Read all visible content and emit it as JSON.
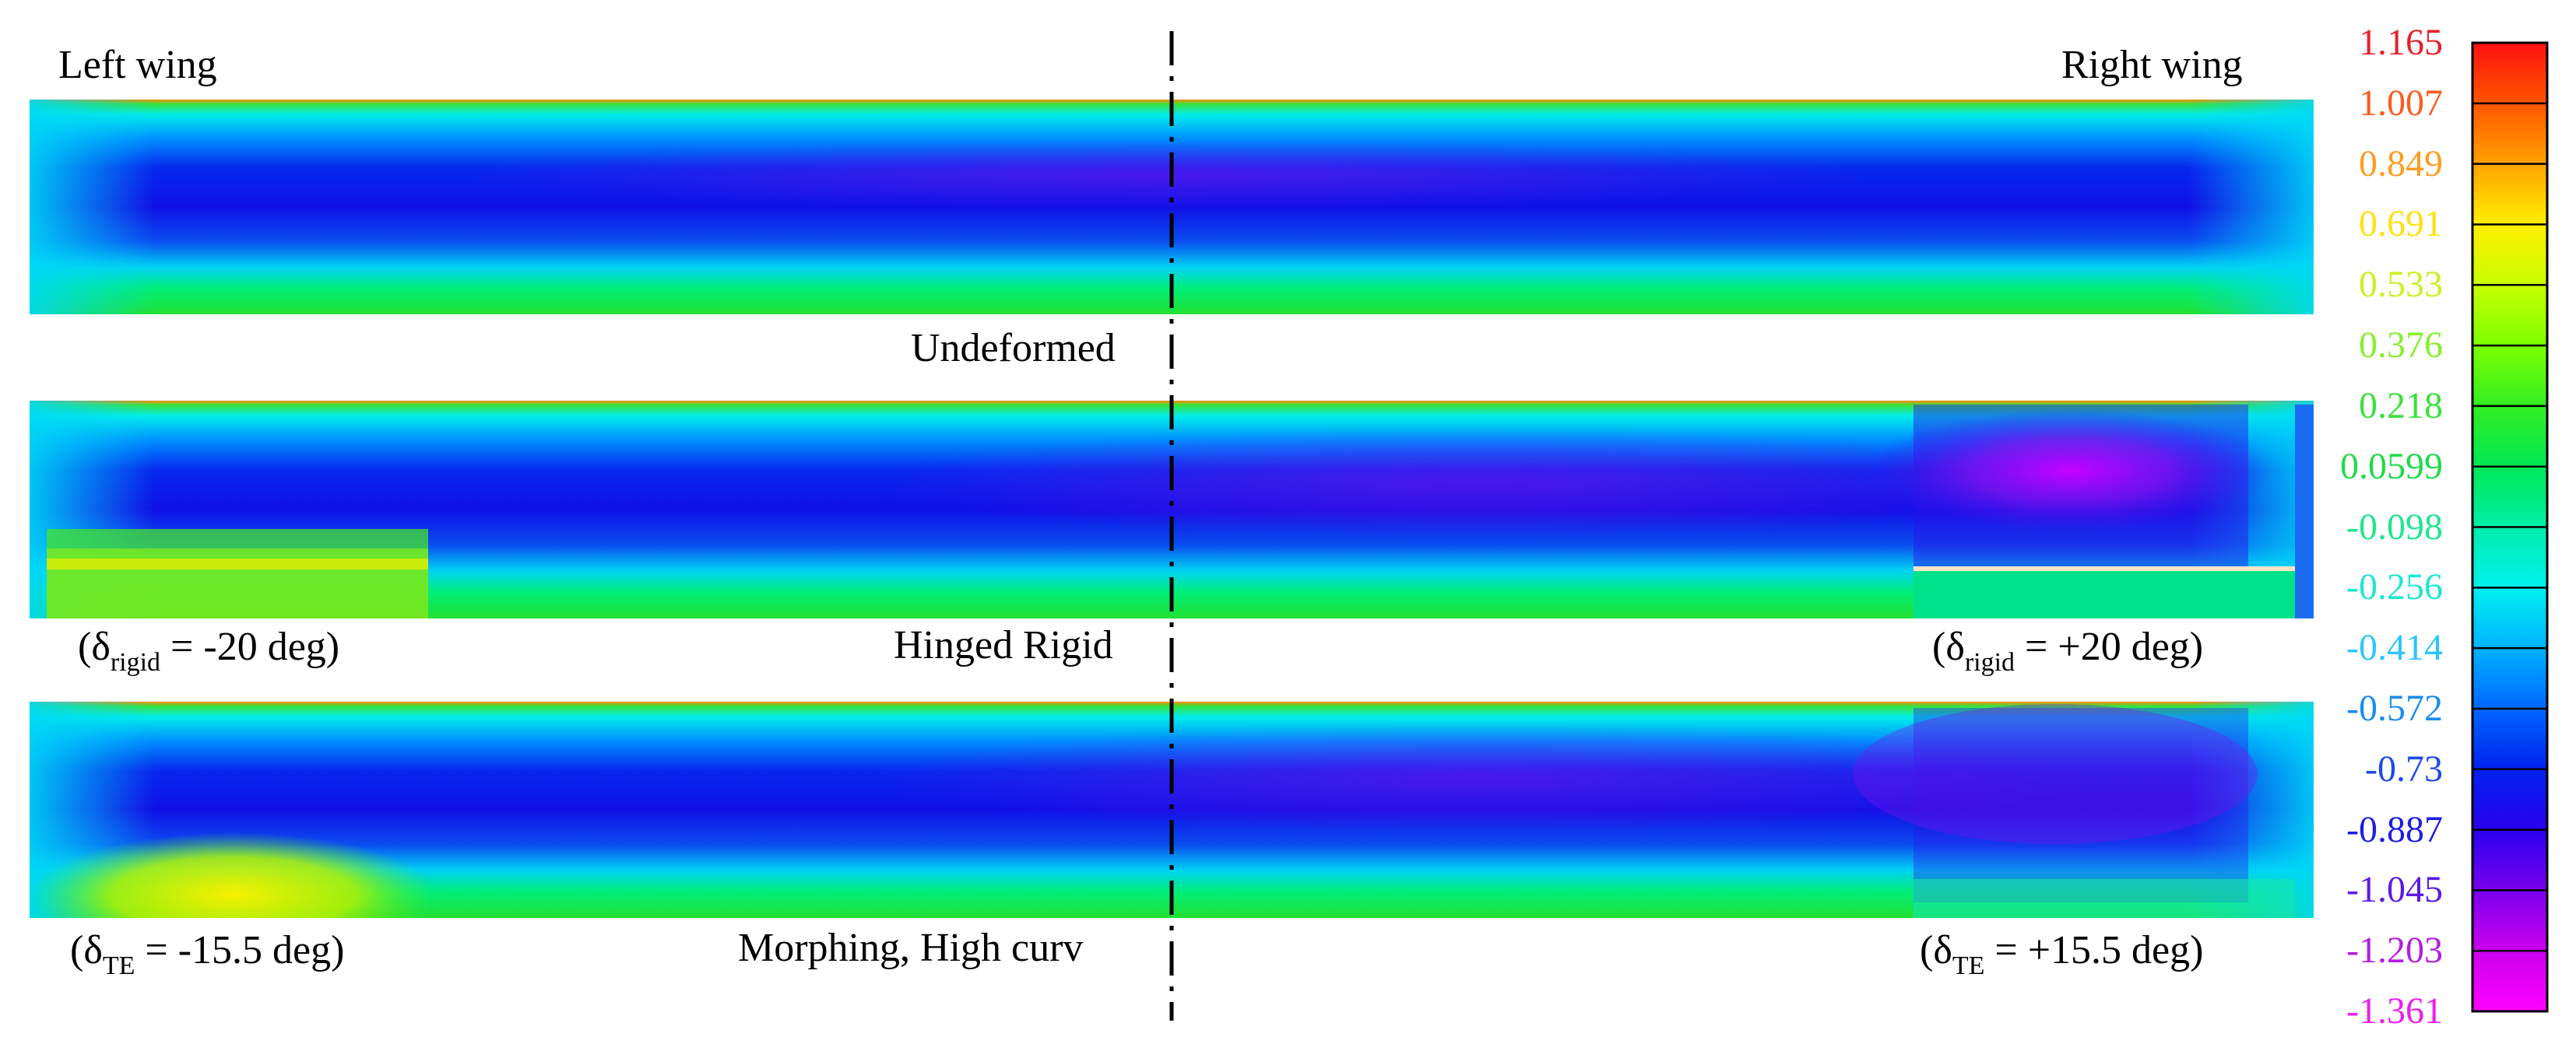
{
  "labels": {
    "left_wing": "Left wing",
    "right_wing": "Right wing",
    "undeformed": "Undeformed",
    "hinged_rigid": "Hinged Rigid",
    "morphing": "Morphing, High curv"
  },
  "annotations": {
    "rigid_left": {
      "pre": "(δ",
      "sub": "rigid",
      "post": " = -20 deg)"
    },
    "rigid_right": {
      "pre": "(δ",
      "sub": "rigid",
      "post": " = +20 deg)"
    },
    "te_left": {
      "pre": "(δ",
      "sub": "TE",
      "post": " = -15.5 deg)"
    },
    "te_right": {
      "pre": "(δ",
      "sub": "TE",
      "post": " = +15.5 deg)"
    }
  },
  "colorbar": {
    "ticks": [
      "1.165",
      "1.007",
      "0.849",
      "0.691",
      "0.533",
      "0.376",
      "0.218",
      "0.0599",
      "-0.098",
      "-0.256",
      "-0.414",
      "-0.572",
      "-0.73",
      "-0.887",
      "-1.045",
      "-1.203",
      "-1.361"
    ],
    "tick_colors": [
      "#e8212c",
      "#ff5a1e",
      "#ff9c22",
      "#ffe011",
      "#c8f222",
      "#88ef2c",
      "#39e23b",
      "#1fdc4a",
      "#1fe68f",
      "#1ee7d2",
      "#2cc6ff",
      "#1b8cf0",
      "#1d49ef",
      "#1f1de8",
      "#5d1ae6",
      "#b51ce6",
      "#ee1fee"
    ],
    "gradient": [
      "#ff0a0a",
      "#ff5500",
      "#ffa200",
      "#ffee00",
      "#c8ff00",
      "#7cff00",
      "#33ee22",
      "#00e855",
      "#00eeaa",
      "#00f0f0",
      "#00b4ff",
      "#0066ff",
      "#0022ee",
      "#2a00ee",
      "#7a00ee",
      "#cc00ee",
      "#ff00ff"
    ]
  }
}
